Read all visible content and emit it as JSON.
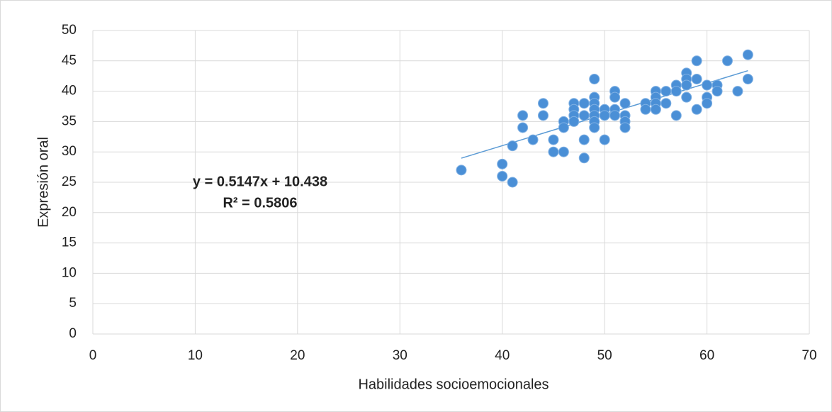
{
  "chart_data": {
    "type": "scatter",
    "x_label": "Habilidades socioemocionales",
    "y_label": "Expresión oral",
    "color": "#4a8fd6",
    "xlim": [
      0,
      70
    ],
    "xticks": [
      0,
      10,
      20,
      30,
      40,
      50,
      60,
      70
    ],
    "ylim": [
      0,
      50
    ],
    "yticks": [
      0,
      5,
      10,
      15,
      20,
      25,
      30,
      35,
      40,
      45,
      50
    ],
    "grid": true,
    "x": [
      36,
      40,
      40,
      41,
      41,
      42,
      42,
      43,
      44,
      44,
      45,
      45,
      46,
      46,
      46,
      47,
      47,
      47,
      47,
      48,
      48,
      48,
      48,
      49,
      49,
      49,
      49,
      49,
      49,
      49,
      50,
      50,
      50,
      51,
      51,
      51,
      51,
      52,
      52,
      52,
      52,
      54,
      54,
      55,
      55,
      55,
      55,
      56,
      56,
      57,
      57,
      57,
      58,
      58,
      58,
      58,
      59,
      59,
      59,
      60,
      60,
      60,
      61,
      61,
      62,
      63,
      64,
      64
    ],
    "values": [
      27,
      28,
      26,
      31,
      25,
      36,
      34,
      32,
      38,
      36,
      32,
      30,
      35,
      34,
      30,
      38,
      37,
      36,
      35,
      38,
      36,
      32,
      29,
      42,
      39,
      38,
      37,
      36,
      35,
      34,
      37,
      36,
      32,
      40,
      39,
      37,
      36,
      38,
      36,
      35,
      34,
      38,
      37,
      40,
      39,
      38,
      37,
      40,
      38,
      41,
      40,
      36,
      43,
      42,
      41,
      39,
      45,
      42,
      37,
      41,
      39,
      38,
      41,
      40,
      45,
      40,
      46,
      42
    ],
    "trendline": {
      "equation": "y = 0.5147x + 10.438",
      "r2_label": "R² = 0.5806",
      "slope": 0.5147,
      "intercept": 10.438,
      "color": "#5b9bd5"
    }
  }
}
